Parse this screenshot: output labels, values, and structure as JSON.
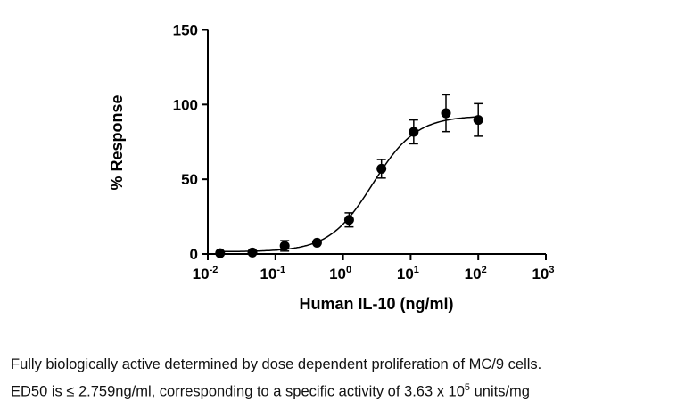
{
  "chart_data": {
    "type": "scatter",
    "xlabel": "Human IL-10 (ng/ml)",
    "ylabel": "% Response",
    "xscale": "log",
    "xlim": [
      0.01,
      1000
    ],
    "ylim": [
      0,
      150
    ],
    "xticks": [
      {
        "base": "10",
        "exp": "-2"
      },
      {
        "base": "10",
        "exp": "-1"
      },
      {
        "base": "10",
        "exp": "0"
      },
      {
        "base": "10",
        "exp": "1"
      },
      {
        "base": "10",
        "exp": "2"
      },
      {
        "base": "10",
        "exp": "3"
      }
    ],
    "yticks": [
      "0",
      "50",
      "100",
      "150"
    ],
    "grid": false,
    "points": [
      {
        "x": 0.0152,
        "y": 0.5,
        "err": 0
      },
      {
        "x": 0.0457,
        "y": 1.0,
        "err": 0
      },
      {
        "x": 0.137,
        "y": 5.4,
        "err": 3.5
      },
      {
        "x": 0.412,
        "y": 7.5,
        "err": 0
      },
      {
        "x": 1.23,
        "y": 22.8,
        "err": 4.7
      },
      {
        "x": 3.7,
        "y": 57.0,
        "err": 6.2
      },
      {
        "x": 11.1,
        "y": 81.7,
        "err": 8.0
      },
      {
        "x": 33.3,
        "y": 94.2,
        "err": 12.3
      },
      {
        "x": 100,
        "y": 89.7,
        "err": 10.9
      }
    ],
    "fit": {
      "model": "4PL",
      "bottom": 1.5,
      "top": 92.5,
      "ec50": 2.759,
      "hill": 1.35
    },
    "colors": {
      "marks": "#000000"
    }
  },
  "caption": {
    "line1": "Fully biologically active determined by dose dependent proliferation of MC/9 cells.",
    "line2_pre": "ED50 is ≤ 2.759ng/ml, corresponding to a specific activity of 3.63 x 10",
    "line2_sup": "5",
    "line2_post": " units/mg"
  }
}
